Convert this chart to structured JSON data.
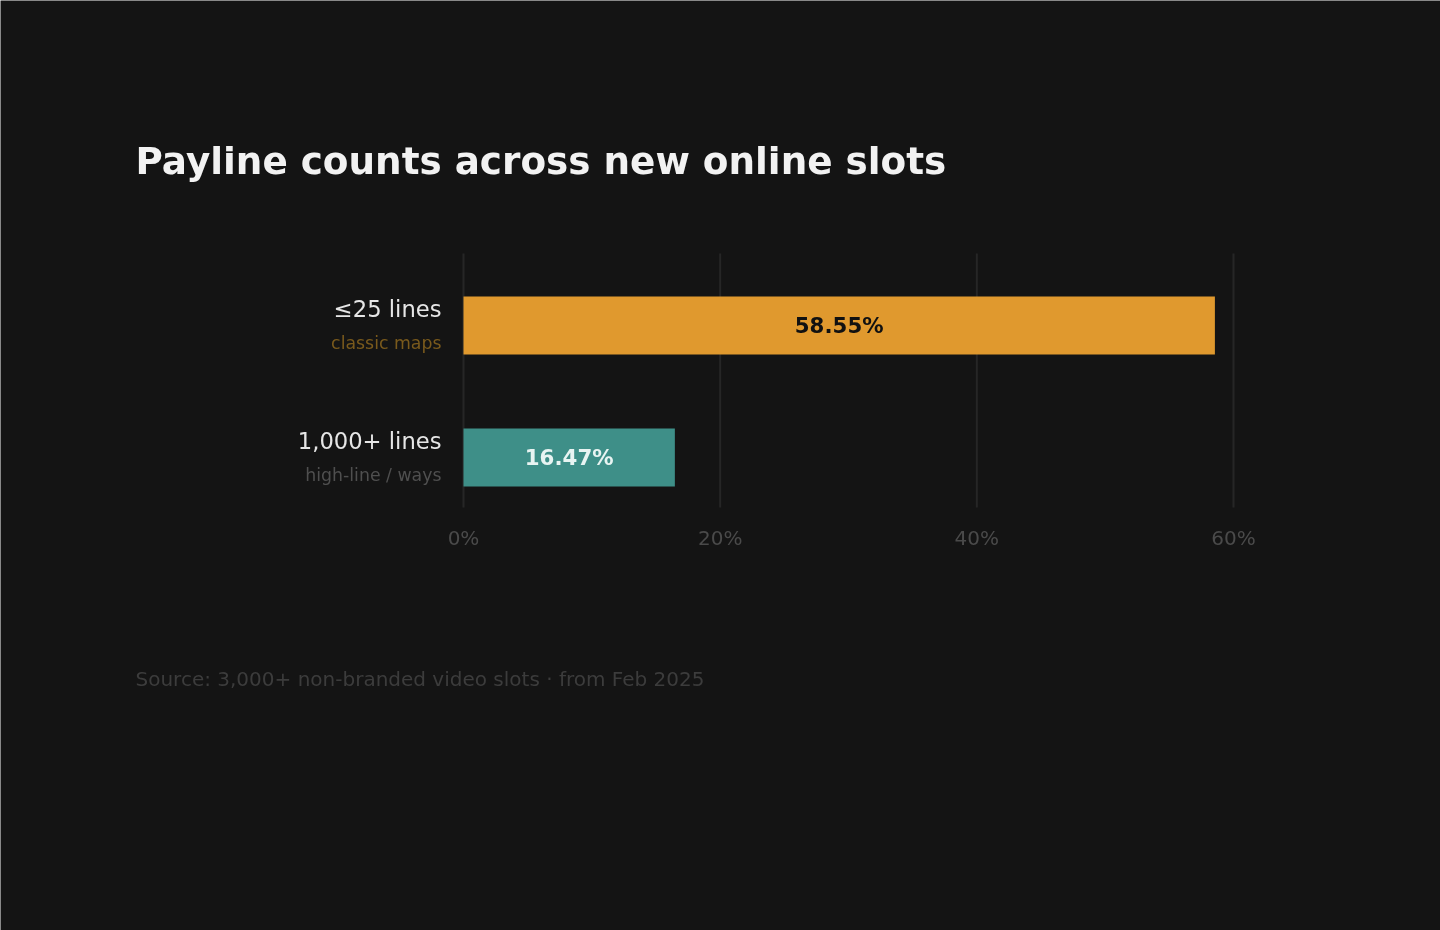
{
  "chart_data": {
    "type": "bar",
    "orientation": "horizontal",
    "title": "Payline counts across new online slots",
    "categories": [
      "≤25 lines\nclassic maps",
      "1,000+ lines\nhigh-line / ways"
    ],
    "values": [
      58.55,
      16.47
    ],
    "colors": [
      "#e0992e",
      "#3e8f88"
    ],
    "value_labels": [
      "58.55%",
      "16.47%"
    ],
    "xlim": [
      0,
      60
    ],
    "xticks": [
      {
        "value": 0,
        "label": "0%"
      },
      {
        "value": 20,
        "label": "20%"
      },
      {
        "value": 40,
        "label": "40%"
      },
      {
        "value": 60,
        "label": "60%"
      }
    ],
    "grid": "x",
    "annotations": [
      "Source: 3,000+ non-branded video slots · from Feb 2025"
    ]
  }
}
